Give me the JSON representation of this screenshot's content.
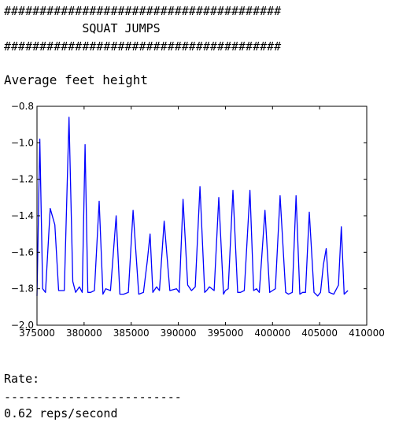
{
  "header": {
    "hash_line_top": "#######################################",
    "title": "           SQUAT JUMPS",
    "hash_line_bottom": "#######################################"
  },
  "chart_heading": "Average feet height",
  "rate": {
    "label": "Rate:",
    "divider": "-------------------------",
    "value": "0.62 reps/second"
  },
  "colors": {
    "line": "#0000ff",
    "axes": "#000000"
  },
  "chart_data": {
    "type": "line",
    "title": "",
    "xlabel": "",
    "ylabel": "",
    "xlim": [
      375000,
      410000
    ],
    "ylim": [
      -2.0,
      -0.8
    ],
    "xticks": [
      375000,
      380000,
      385000,
      390000,
      395000,
      400000,
      405000,
      410000
    ],
    "yticks": [
      -2.0,
      -1.8,
      -1.6,
      -1.4,
      -1.2,
      -1.0,
      -0.8
    ],
    "grid": false,
    "series": [
      {
        "x": [
          375000,
          375300,
          375600,
          375900,
          376400,
          376900,
          377300,
          377900,
          378400,
          378800,
          379100,
          379500,
          379800,
          380100,
          380400,
          380700,
          381100,
          381600,
          382000,
          382300,
          382800,
          383400,
          383800,
          384200,
          384700,
          385200,
          385800,
          386300,
          386700,
          387000,
          387300,
          387700,
          388000,
          388500,
          389100,
          389800,
          390100,
          390500,
          391000,
          391400,
          391800,
          392300,
          392800,
          393000,
          393300,
          393800,
          394300,
          394800,
          395000,
          395300,
          395800,
          396300,
          396600,
          397000,
          397600,
          398000,
          398300,
          398600,
          399200,
          399700,
          400000,
          400300,
          400800,
          401400,
          401700,
          402100,
          402500,
          402900,
          403200,
          403500,
          403900,
          404400,
          404800,
          405100,
          405400,
          405700,
          406000,
          406500,
          407000,
          407300,
          407600,
          408000
        ],
        "values": [
          -1.84,
          -0.98,
          -1.8,
          -1.82,
          -1.36,
          -1.45,
          -1.81,
          -1.81,
          -0.86,
          -1.76,
          -1.82,
          -1.79,
          -1.82,
          -1.01,
          -1.82,
          -1.82,
          -1.81,
          -1.32,
          -1.83,
          -1.8,
          -1.81,
          -1.4,
          -1.83,
          -1.83,
          -1.82,
          -1.37,
          -1.83,
          -1.82,
          -1.65,
          -1.5,
          -1.82,
          -1.79,
          -1.81,
          -1.43,
          -1.81,
          -1.8,
          -1.82,
          -1.31,
          -1.78,
          -1.81,
          -1.79,
          -1.24,
          -1.82,
          -1.81,
          -1.79,
          -1.81,
          -1.3,
          -1.83,
          -1.81,
          -1.8,
          -1.26,
          -1.82,
          -1.82,
          -1.81,
          -1.26,
          -1.81,
          -1.8,
          -1.82,
          -1.37,
          -1.82,
          -1.81,
          -1.8,
          -1.29,
          -1.82,
          -1.83,
          -1.82,
          -1.29,
          -1.83,
          -1.82,
          -1.82,
          -1.38,
          -1.82,
          -1.84,
          -1.82,
          -1.67,
          -1.58,
          -1.82,
          -1.83,
          -1.78,
          -1.46,
          -1.83,
          -1.81
        ]
      }
    ]
  }
}
